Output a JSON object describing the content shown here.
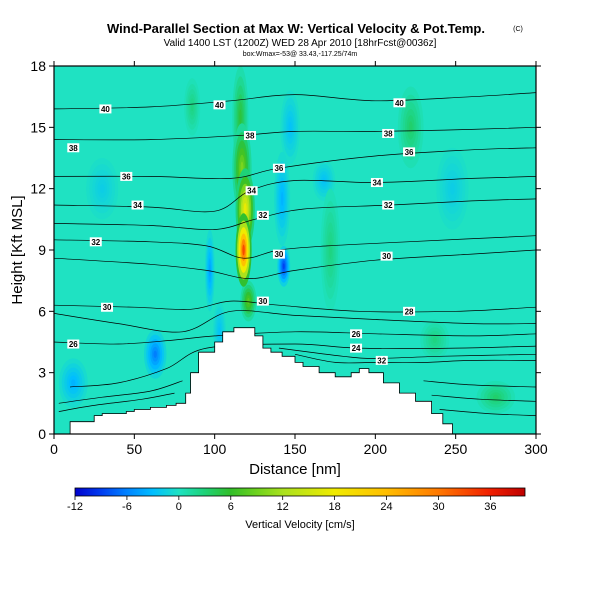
{
  "chart_data": {
    "type": "heatmap",
    "title": "Wind-Parallel Section at Max W: Vertical Velocity & Pot.Temp.",
    "title_mark": "(C)",
    "subtitle": "Valid 1400 LST (1200Z) WED 28 Apr 2010 [18hrFcst@0036z]",
    "subtitle2": "box:Wmax=-53@ 33.43,-117.25/74m",
    "xlabel": "Distance [nm]",
    "ylabel": "Height [Kft MSL]",
    "xlim": [
      0,
      300
    ],
    "ylim": [
      0,
      18
    ],
    "x_ticks": [
      "0",
      "50",
      "100",
      "150",
      "200",
      "250",
      "300"
    ],
    "y_ticks": [
      "0",
      "3",
      "6",
      "9",
      "12",
      "15",
      "18"
    ],
    "colorbar": {
      "label": "Vertical Velocity [cm/s]",
      "min": -12,
      "max": 40,
      "ticks": [
        "-12",
        "-6",
        "0",
        "6",
        "12",
        "18",
        "24",
        "30",
        "36"
      ]
    },
    "terrain": [
      [
        0,
        0.0
      ],
      [
        5,
        0.0
      ],
      [
        10,
        0.6
      ],
      [
        20,
        0.6
      ],
      [
        25,
        0.9
      ],
      [
        30,
        1.0
      ],
      [
        45,
        1.1
      ],
      [
        50,
        1.2
      ],
      [
        60,
        1.3
      ],
      [
        70,
        1.4
      ],
      [
        76,
        1.5
      ],
      [
        82,
        2.0
      ],
      [
        85,
        3.0
      ],
      [
        90,
        4.0
      ],
      [
        100,
        4.5
      ],
      [
        105,
        5.0
      ],
      [
        112,
        5.2
      ],
      [
        118,
        5.2
      ],
      [
        125,
        4.8
      ],
      [
        130,
        4.2
      ],
      [
        135,
        4.0
      ],
      [
        142,
        3.8
      ],
      [
        150,
        3.5
      ],
      [
        155,
        3.3
      ],
      [
        165,
        3.0
      ],
      [
        175,
        2.8
      ],
      [
        185,
        3.0
      ],
      [
        190,
        3.2
      ],
      [
        196,
        3.0
      ],
      [
        205,
        2.5
      ],
      [
        215,
        2.0
      ],
      [
        225,
        1.6
      ],
      [
        235,
        1.0
      ],
      [
        242,
        0.5
      ],
      [
        248,
        0.0
      ],
      [
        300,
        0.0
      ]
    ],
    "contours": [
      {
        "label": "40",
        "knots": [
          [
            0,
            15.9
          ],
          [
            60,
            16.0
          ],
          [
            110,
            16.3
          ],
          [
            150,
            16.6
          ],
          [
            200,
            16.3
          ],
          [
            260,
            16.5
          ],
          [
            300,
            16.7
          ]
        ]
      },
      {
        "label": "38",
        "knots": [
          [
            0,
            14.4
          ],
          [
            60,
            14.4
          ],
          [
            115,
            14.6
          ],
          [
            150,
            14.8
          ],
          [
            200,
            14.8
          ],
          [
            260,
            14.9
          ],
          [
            300,
            15.0
          ]
        ]
      },
      {
        "label": "36",
        "knots": [
          [
            0,
            12.6
          ],
          [
            60,
            12.6
          ],
          [
            110,
            12.5
          ],
          [
            140,
            13.0
          ],
          [
            200,
            13.6
          ],
          [
            260,
            13.9
          ],
          [
            300,
            14.0
          ]
        ]
      },
      {
        "label": "34",
        "knots": [
          [
            0,
            11.2
          ],
          [
            60,
            11.1
          ],
          [
            100,
            10.9
          ],
          [
            122,
            11.9
          ],
          [
            150,
            12.4
          ],
          [
            200,
            12.3
          ],
          [
            260,
            12.5
          ],
          [
            300,
            12.6
          ]
        ]
      },
      {
        "label": "32",
        "knots": [
          [
            0,
            10.3
          ],
          [
            60,
            10.2
          ],
          [
            100,
            10.0
          ],
          [
            125,
            10.5
          ],
          [
            155,
            11.0
          ],
          [
            210,
            11.2
          ],
          [
            260,
            11.4
          ],
          [
            300,
            11.5
          ]
        ]
      },
      {
        "label": "32",
        "knots": [
          [
            0,
            9.5
          ],
          [
            60,
            9.4
          ],
          [
            95,
            9.2
          ],
          [
            118,
            8.6
          ],
          [
            140,
            9.0
          ],
          [
            170,
            9.2
          ],
          [
            220,
            9.4
          ],
          [
            300,
            9.7
          ]
        ]
      },
      {
        "label": "30",
        "knots": [
          [
            0,
            8.6
          ],
          [
            60,
            8.3
          ],
          [
            95,
            8.0
          ],
          [
            122,
            7.6
          ],
          [
            150,
            8.0
          ],
          [
            200,
            8.5
          ],
          [
            260,
            8.8
          ],
          [
            300,
            9.0
          ]
        ]
      },
      {
        "label": "30",
        "knots": [
          [
            0,
            6.3
          ],
          [
            50,
            6.2
          ],
          [
            85,
            6.1
          ],
          [
            110,
            6.5
          ],
          [
            140,
            6.3
          ],
          [
            190,
            6.0
          ],
          [
            250,
            6.0
          ],
          [
            300,
            6.2
          ]
        ]
      },
      {
        "label": "28",
        "knots": [
          [
            0,
            5.9
          ],
          [
            40,
            5.4
          ],
          [
            80,
            5.0
          ],
          [
            110,
            6.0
          ],
          [
            150,
            5.8
          ],
          [
            200,
            5.6
          ],
          [
            260,
            5.4
          ],
          [
            300,
            5.4
          ]
        ]
      },
      {
        "label": "26",
        "knots": [
          [
            0,
            4.5
          ],
          [
            40,
            4.4
          ],
          [
            75,
            4.6
          ],
          [
            100,
            4.8
          ],
          [
            150,
            5.0
          ],
          [
            200,
            4.9
          ],
          [
            260,
            4.8
          ],
          [
            300,
            4.9
          ]
        ]
      },
      {
        "label": "24",
        "knots": [
          [
            10,
            2.3
          ],
          [
            40,
            2.5
          ],
          [
            70,
            3.2
          ],
          [
            95,
            4.2
          ],
          [
            150,
            4.4
          ],
          [
            190,
            4.2
          ],
          [
            250,
            4.2
          ],
          [
            300,
            4.3
          ]
        ]
      },
      {
        "label": "26",
        "knots": [
          [
            140,
            4.2
          ],
          [
            180,
            3.8
          ],
          [
            200,
            3.7
          ],
          [
            240,
            3.8
          ],
          [
            300,
            3.9
          ]
        ]
      },
      {
        "label": "32",
        "knots": [
          [
            150,
            3.9
          ],
          [
            175,
            3.5
          ],
          [
            200,
            3.5
          ],
          [
            230,
            3.5
          ],
          [
            260,
            3.6
          ],
          [
            300,
            3.6
          ]
        ]
      },
      {
        "label": "",
        "knots": [
          [
            3,
            1.5
          ],
          [
            30,
            1.8
          ],
          [
            60,
            2.1
          ],
          [
            80,
            2.6
          ]
        ]
      },
      {
        "label": "",
        "knots": [
          [
            3,
            1.1
          ],
          [
            25,
            1.4
          ],
          [
            55,
            1.7
          ],
          [
            75,
            2.0
          ]
        ]
      },
      {
        "label": "",
        "knots": [
          [
            230,
            2.6
          ],
          [
            260,
            2.4
          ],
          [
            300,
            2.3
          ]
        ]
      },
      {
        "label": "",
        "knots": [
          [
            235,
            1.9
          ],
          [
            265,
            1.7
          ],
          [
            300,
            1.6
          ]
        ]
      },
      {
        "label": "",
        "knots": [
          [
            240,
            1.2
          ],
          [
            270,
            1.0
          ],
          [
            300,
            0.9
          ]
        ]
      }
    ],
    "contour_labels": [
      {
        "text": "40",
        "x": 32,
        "y": 15.9
      },
      {
        "text": "40",
        "x": 103,
        "y": 16.1
      },
      {
        "text": "40",
        "x": 215,
        "y": 16.2
      },
      {
        "text": "38",
        "x": 12,
        "y": 14.0
      },
      {
        "text": "38",
        "x": 122,
        "y": 14.6
      },
      {
        "text": "38",
        "x": 208,
        "y": 14.7
      },
      {
        "text": "36",
        "x": 45,
        "y": 12.6
      },
      {
        "text": "36",
        "x": 140,
        "y": 13.0
      },
      {
        "text": "36",
        "x": 221,
        "y": 13.8
      },
      {
        "text": "34",
        "x": 52,
        "y": 11.2
      },
      {
        "text": "34",
        "x": 123,
        "y": 11.9
      },
      {
        "text": "34",
        "x": 201,
        "y": 12.3
      },
      {
        "text": "32",
        "x": 130,
        "y": 10.7
      },
      {
        "text": "32",
        "x": 208,
        "y": 11.2
      },
      {
        "text": "32",
        "x": 26,
        "y": 9.4
      },
      {
        "text": "30",
        "x": 140,
        "y": 8.8
      },
      {
        "text": "30",
        "x": 207,
        "y": 8.7
      },
      {
        "text": "30",
        "x": 33,
        "y": 6.2
      },
      {
        "text": "30",
        "x": 130,
        "y": 6.5
      },
      {
        "text": "28",
        "x": 221,
        "y": 6.0
      },
      {
        "text": "26",
        "x": 12,
        "y": 4.4
      },
      {
        "text": "26",
        "x": 188,
        "y": 4.9
      },
      {
        "text": "24",
        "x": 188,
        "y": 4.2
      },
      {
        "text": "32",
        "x": 204,
        "y": 3.6
      }
    ],
    "updrafts": [
      {
        "x": 118,
        "y": 9.0,
        "value": 38,
        "sx": 5,
        "sy": 1.8
      },
      {
        "x": 119,
        "y": 11.0,
        "value": 20,
        "sx": 6,
        "sy": 2.0
      },
      {
        "x": 117,
        "y": 13.0,
        "value": 11,
        "sx": 6,
        "sy": 2.2
      },
      {
        "x": 116,
        "y": 15.5,
        "value": 6,
        "sx": 5,
        "sy": 2.5
      },
      {
        "x": 121,
        "y": 6.5,
        "value": 9,
        "sx": 5,
        "sy": 1.0
      },
      {
        "x": 86,
        "y": 16.0,
        "value": 3,
        "sx": 5,
        "sy": 1.4
      },
      {
        "x": 172,
        "y": 9.0,
        "value": 3,
        "sx": 6,
        "sy": 3.0
      },
      {
        "x": 222,
        "y": 15.0,
        "value": 4,
        "sx": 8,
        "sy": 2.0
      },
      {
        "x": 237,
        "y": 4.6,
        "value": 3,
        "sx": 9,
        "sy": 1.0
      },
      {
        "x": 275,
        "y": 1.8,
        "value": 4,
        "sx": 12,
        "sy": 0.8
      },
      {
        "x": 196,
        "y": 0.9,
        "value": 2,
        "sx": 20,
        "sy": 0.6
      }
    ],
    "downdrafts": [
      {
        "x": 143,
        "y": 8.2,
        "value": -10,
        "sx": 4,
        "sy": 1.0
      },
      {
        "x": 142,
        "y": 11.5,
        "value": -4,
        "sx": 5,
        "sy": 2.3
      },
      {
        "x": 147,
        "y": 15.0,
        "value": -3,
        "sx": 6,
        "sy": 1.8
      },
      {
        "x": 168,
        "y": 12.4,
        "value": -3,
        "sx": 7,
        "sy": 1.0
      },
      {
        "x": 63,
        "y": 3.9,
        "value": -7,
        "sx": 7,
        "sy": 1.2
      },
      {
        "x": 97,
        "y": 8.0,
        "value": -5,
        "sx": 3,
        "sy": 2.0
      },
      {
        "x": 103,
        "y": 5.0,
        "value": -3,
        "sx": 4,
        "sy": 1.5
      },
      {
        "x": 12,
        "y": 2.5,
        "value": -4,
        "sx": 9,
        "sy": 1.2
      },
      {
        "x": 30,
        "y": 12.0,
        "value": -2,
        "sx": 10,
        "sy": 1.5
      },
      {
        "x": 248,
        "y": 12.0,
        "value": -2,
        "sx": 10,
        "sy": 2.0
      }
    ]
  }
}
